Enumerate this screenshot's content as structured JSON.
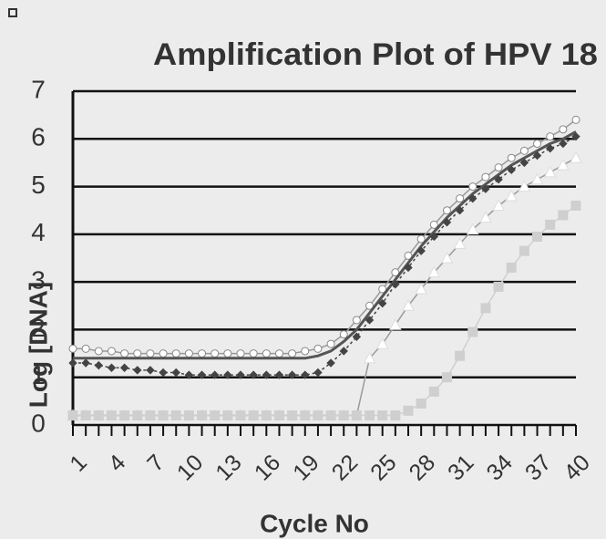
{
  "chart_data": {
    "type": "line",
    "title": "Amplification Plot of HPV 18",
    "x_label": "Cycle No",
    "y_label": "Log [DNA]",
    "x": [
      1,
      2,
      3,
      4,
      5,
      6,
      7,
      8,
      9,
      10,
      11,
      12,
      13,
      14,
      15,
      16,
      17,
      18,
      19,
      20,
      21,
      22,
      23,
      24,
      25,
      26,
      27,
      28,
      29,
      30,
      31,
      32,
      33,
      34,
      35,
      36,
      37,
      38,
      39,
      40
    ],
    "xlim": [
      1,
      40
    ],
    "xticks": [
      1,
      4,
      7,
      10,
      13,
      16,
      19,
      22,
      25,
      28,
      31,
      34,
      37,
      40
    ],
    "ylim": [
      0,
      7
    ],
    "yticks": [
      0,
      1,
      2,
      3,
      4,
      5,
      6,
      7
    ],
    "grid": true,
    "series": [
      {
        "color": "#ffffff",
        "marker": "circle",
        "values": [
          1.6,
          1.6,
          1.55,
          1.55,
          1.5,
          1.5,
          1.5,
          1.5,
          1.5,
          1.5,
          1.5,
          1.5,
          1.5,
          1.5,
          1.5,
          1.5,
          1.5,
          1.5,
          1.55,
          1.6,
          1.7,
          1.9,
          2.2,
          2.5,
          2.85,
          3.2,
          3.55,
          3.9,
          4.2,
          4.5,
          4.75,
          5.0,
          5.2,
          5.4,
          5.6,
          5.75,
          5.9,
          6.05,
          6.2,
          6.4
        ]
      },
      {
        "color": "#555555",
        "marker": "none",
        "values": [
          1.4,
          1.4,
          1.4,
          1.4,
          1.4,
          1.4,
          1.4,
          1.4,
          1.4,
          1.4,
          1.4,
          1.4,
          1.4,
          1.4,
          1.4,
          1.4,
          1.4,
          1.4,
          1.4,
          1.45,
          1.55,
          1.75,
          2.0,
          2.35,
          2.7,
          3.05,
          3.4,
          3.75,
          4.05,
          4.35,
          4.6,
          4.85,
          5.05,
          5.25,
          5.45,
          5.6,
          5.75,
          5.9,
          6.0,
          6.15
        ]
      },
      {
        "color": "#444444",
        "marker": "diamond",
        "values": [
          1.3,
          1.3,
          1.25,
          1.2,
          1.2,
          1.15,
          1.15,
          1.1,
          1.1,
          1.05,
          1.05,
          1.05,
          1.05,
          1.05,
          1.05,
          1.05,
          1.05,
          1.05,
          1.05,
          1.1,
          1.3,
          1.55,
          1.85,
          2.2,
          2.55,
          2.95,
          3.3,
          3.65,
          3.95,
          4.25,
          4.5,
          4.75,
          4.95,
          5.15,
          5.35,
          5.5,
          5.65,
          5.8,
          5.9,
          6.05
        ]
      },
      {
        "color": "#ffffff",
        "marker": "triangle",
        "values": [
          0.2,
          0.2,
          0.2,
          0.2,
          0.2,
          0.2,
          0.2,
          0.2,
          0.2,
          0.2,
          0.2,
          0.2,
          0.2,
          0.2,
          0.2,
          0.2,
          0.2,
          0.2,
          0.2,
          0.2,
          0.2,
          0.2,
          0.2,
          1.4,
          1.7,
          2.1,
          2.5,
          2.85,
          3.2,
          3.5,
          3.8,
          4.1,
          4.35,
          4.6,
          4.8,
          5.0,
          5.15,
          5.3,
          5.45,
          5.6
        ]
      },
      {
        "color": "#cfcfcf",
        "marker": "square",
        "values": [
          0.2,
          0.2,
          0.2,
          0.2,
          0.2,
          0.2,
          0.2,
          0.2,
          0.2,
          0.2,
          0.2,
          0.2,
          0.2,
          0.2,
          0.2,
          0.2,
          0.2,
          0.2,
          0.2,
          0.2,
          0.2,
          0.2,
          0.2,
          0.2,
          0.2,
          0.2,
          0.3,
          0.45,
          0.7,
          1.0,
          1.45,
          1.95,
          2.45,
          2.9,
          3.3,
          3.65,
          3.95,
          4.2,
          4.4,
          4.6
        ]
      }
    ]
  }
}
